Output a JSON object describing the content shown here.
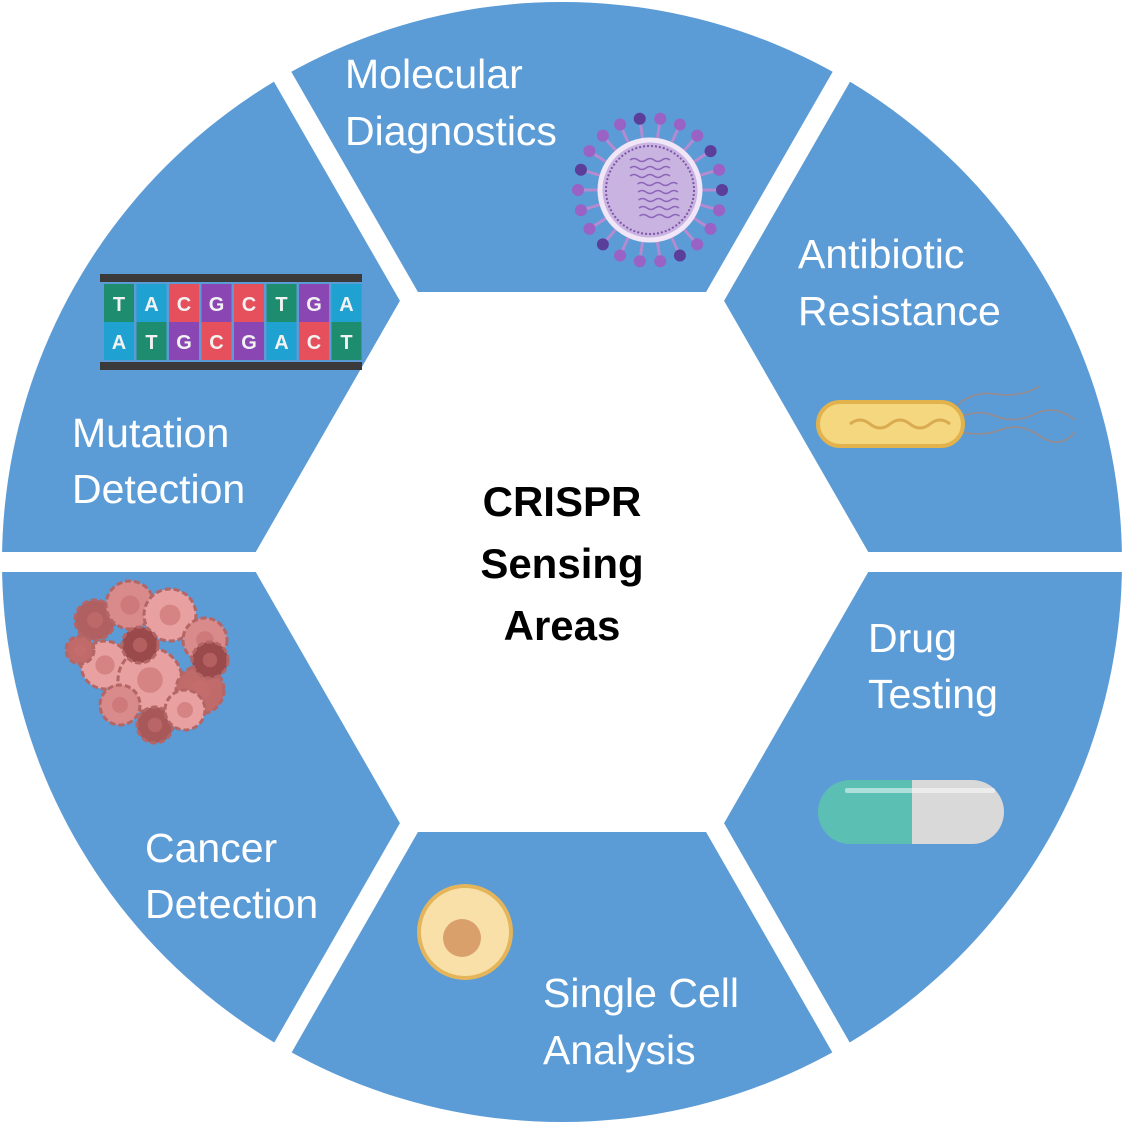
{
  "center": {
    "lines": [
      "CRISPR",
      "Sensing",
      "Areas"
    ]
  },
  "segments": {
    "molecular": {
      "lines": [
        "Molecular",
        "Diagnostics"
      ],
      "icon": "virus-icon"
    },
    "antibiotic": {
      "lines": [
        "Antibiotic",
        "Resistance"
      ],
      "icon": "bacterium-icon"
    },
    "drug": {
      "lines": [
        "Drug",
        "Testing"
      ],
      "icon": "pill-capsule-icon"
    },
    "single_cell": {
      "lines": [
        "Single Cell",
        "Analysis"
      ],
      "icon": "cell-icon"
    },
    "cancer": {
      "lines": [
        "Cancer",
        "Detection"
      ],
      "icon": "cancer-cells-icon"
    },
    "mutation": {
      "lines": [
        "Mutation",
        "Detection"
      ],
      "icon": "dna-sequence-icon"
    }
  },
  "dna": {
    "top": [
      "T",
      "A",
      "C",
      "G",
      "C",
      "T",
      "G",
      "A"
    ],
    "bottom": [
      "A",
      "T",
      "G",
      "C",
      "G",
      "A",
      "C",
      "T"
    ]
  },
  "colors": {
    "segment": "#5b9bd6",
    "gap": "#ffffff",
    "T": "#1e8c6e",
    "A": "#1fa2d2",
    "C": "#e5505c",
    "G": "#8a46b3"
  }
}
